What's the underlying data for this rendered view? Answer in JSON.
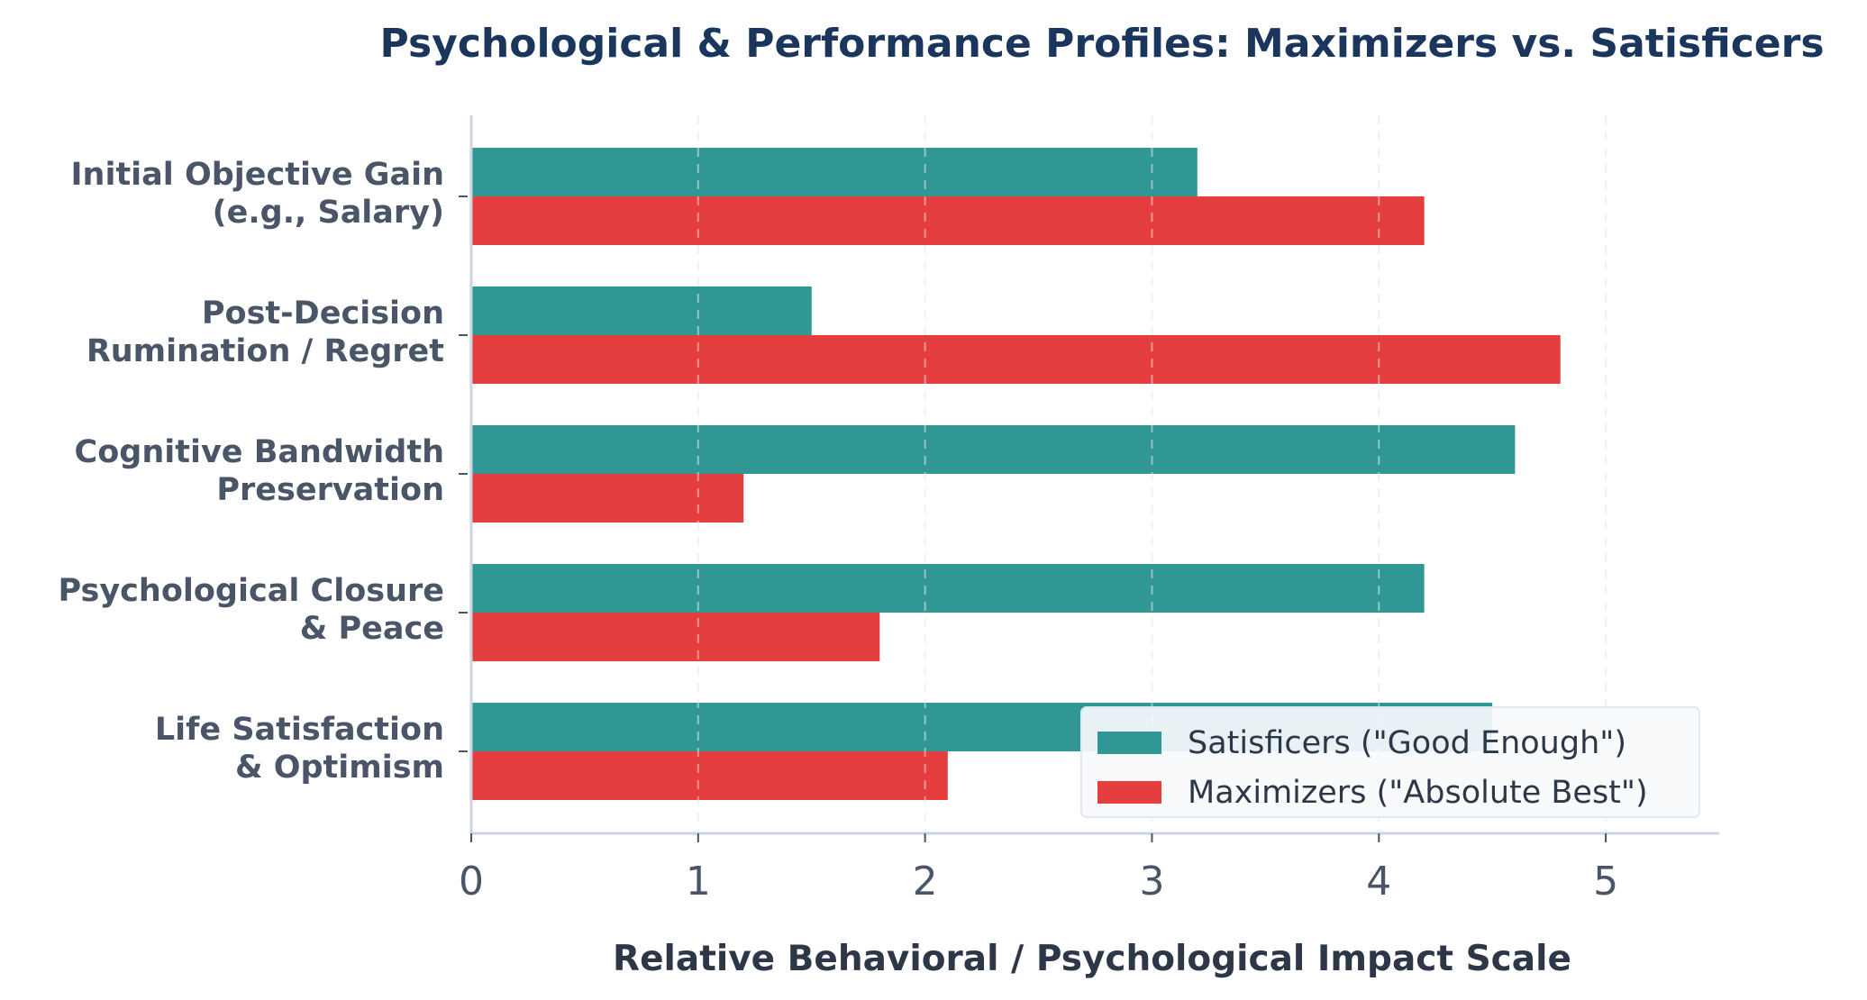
{
  "chart_data": {
    "type": "bar",
    "orientation": "horizontal",
    "title": "Psychological & Performance Profiles: Maximizers vs. Satisficers",
    "xlabel": "Relative Behavioral / Psychological Impact Scale",
    "ylabel": "",
    "xlim": [
      0,
      5.5
    ],
    "xticks": [
      0,
      1,
      2,
      3,
      4,
      5
    ],
    "xtick_labels": [
      "0",
      "1",
      "2",
      "3",
      "4",
      "5"
    ],
    "grid": "x-dashed",
    "legend_position": "bottom-right",
    "categories": [
      [
        "Initial Objective Gain",
        "(e.g., Salary)"
      ],
      [
        "Post-Decision",
        "Rumination / Regret"
      ],
      [
        "Cognitive Bandwidth",
        "Preservation"
      ],
      [
        "Psychological Closure",
        "& Peace"
      ],
      [
        "Life Satisfaction",
        "& Optimism"
      ]
    ],
    "series": [
      {
        "name": "Satisficers (\"Good Enough\")",
        "color": "#319795",
        "values": [
          3.2,
          1.5,
          4.6,
          4.2,
          4.5
        ]
      },
      {
        "name": "Maximizers (\"Absolute Best\")",
        "color": "#e53e3e",
        "values": [
          4.2,
          4.8,
          1.2,
          1.8,
          2.1
        ]
      }
    ]
  }
}
